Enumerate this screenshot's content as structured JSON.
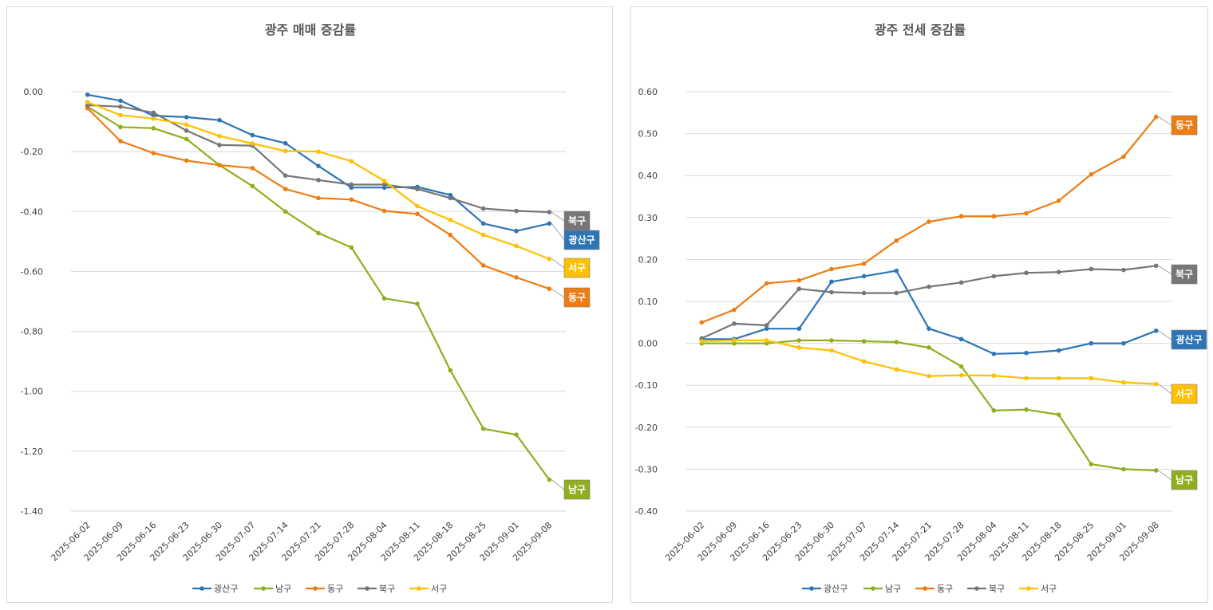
{
  "chart_data": [
    {
      "type": "line",
      "title": "광주 매매 증감률",
      "x": [
        "2025-06-02",
        "2025-06-09",
        "2025-06-16",
        "2025-06-23",
        "2025-06-30",
        "2025-07-07",
        "2025-07-14",
        "2025-07-21",
        "2025-07-28",
        "2025-08-04",
        "2025-08-11",
        "2025-08-18",
        "2025-08-25",
        "2025-09-01",
        "2025-09-08"
      ],
      "ylim": [
        -1.4,
        0.0
      ],
      "yticks": [
        "0.00",
        "-0.20",
        "-0.40",
        "-0.60",
        "-0.80",
        "-1.00",
        "-1.20",
        "-1.40"
      ],
      "ytick_values": [
        0.0,
        -0.2,
        -0.4,
        -0.6,
        -0.8,
        -1.0,
        -1.2,
        -1.4
      ],
      "grid": true,
      "legend": "bottom",
      "series": [
        {
          "name": "광산구",
          "color": "#2e75b6",
          "values": [
            -0.01,
            -0.03,
            -0.08,
            -0.085,
            -0.095,
            -0.145,
            -0.172,
            -0.248,
            -0.32,
            -0.32,
            -0.318,
            -0.345,
            -0.44,
            -0.465,
            -0.44
          ]
        },
        {
          "name": "남구",
          "color": "#8faf1f",
          "values": [
            -0.05,
            -0.118,
            -0.122,
            -0.158,
            -0.245,
            -0.315,
            -0.4,
            -0.472,
            -0.52,
            -0.69,
            -0.708,
            -0.93,
            -1.125,
            -1.145,
            -1.295
          ]
        },
        {
          "name": "동구",
          "color": "#ed7d12",
          "values": [
            -0.055,
            -0.165,
            -0.205,
            -0.23,
            -0.245,
            -0.255,
            -0.325,
            -0.355,
            -0.36,
            -0.398,
            -0.408,
            -0.478,
            -0.58,
            -0.62,
            -0.658
          ]
        },
        {
          "name": "북구",
          "color": "#767676",
          "values": [
            -0.045,
            -0.05,
            -0.07,
            -0.13,
            -0.178,
            -0.18,
            -0.28,
            -0.295,
            -0.31,
            -0.31,
            -0.325,
            -0.355,
            -0.39,
            -0.398,
            -0.402
          ]
        },
        {
          "name": "서구",
          "color": "#ffc000",
          "values": [
            -0.035,
            -0.078,
            -0.09,
            -0.11,
            -0.148,
            -0.173,
            -0.198,
            -0.2,
            -0.232,
            -0.298,
            -0.382,
            -0.428,
            -0.478,
            -0.515,
            -0.558
          ]
        }
      ],
      "end_labels": [
        {
          "series": "북구",
          "text": "북구",
          "color": "#767676"
        },
        {
          "series": "광산구",
          "text": "광산구",
          "color": "#2e75b6"
        },
        {
          "series": "서구",
          "text": "서구",
          "color": "#ffc000"
        },
        {
          "series": "동구",
          "text": "동구",
          "color": "#ed7d12"
        },
        {
          "series": "남구",
          "text": "남구",
          "color": "#8faf1f"
        }
      ]
    },
    {
      "type": "line",
      "title": "광주 전세 증감률",
      "x": [
        "2025-06-02",
        "2025-06-09",
        "2025-06-16",
        "2025-06-23",
        "2025-06-30",
        "2025-07-07",
        "2025-07-14",
        "2025-07-21",
        "2025-07-28",
        "2025-08-04",
        "2025-08-11",
        "2025-08-18",
        "2025-08-25",
        "2025-09-01",
        "2025-09-08"
      ],
      "ylim": [
        -0.4,
        0.6
      ],
      "yticks": [
        "0.60",
        "0.50",
        "0.40",
        "0.30",
        "0.20",
        "0.10",
        "0.00",
        "-0.10",
        "-0.20",
        "-0.30",
        "-0.40"
      ],
      "ytick_values": [
        0.6,
        0.5,
        0.4,
        0.3,
        0.2,
        0.1,
        0.0,
        -0.1,
        -0.2,
        -0.3,
        -0.4
      ],
      "grid": true,
      "legend": "bottom",
      "series": [
        {
          "name": "광산구",
          "color": "#2e75b6",
          "values": [
            0.01,
            0.01,
            0.035,
            0.035,
            0.147,
            0.16,
            0.173,
            0.035,
            0.01,
            -0.025,
            -0.023,
            -0.017,
            0.0,
            0.0,
            0.03
          ]
        },
        {
          "name": "남구",
          "color": "#8faf1f",
          "values": [
            0.0,
            0.0,
            0.0,
            0.007,
            0.007,
            0.005,
            0.003,
            -0.01,
            -0.055,
            -0.16,
            -0.158,
            -0.17,
            -0.288,
            -0.3,
            -0.303
          ]
        },
        {
          "name": "동구",
          "color": "#ed7d12",
          "values": [
            0.05,
            0.08,
            0.143,
            0.15,
            0.177,
            0.19,
            0.245,
            0.29,
            0.303,
            0.303,
            0.31,
            0.34,
            0.403,
            0.445,
            0.54
          ]
        },
        {
          "name": "북구",
          "color": "#767676",
          "values": [
            0.012,
            0.047,
            0.043,
            0.13,
            0.122,
            0.12,
            0.12,
            0.135,
            0.145,
            0.16,
            0.168,
            0.17,
            0.177,
            0.175,
            0.185
          ]
        },
        {
          "name": "서구",
          "color": "#ffc000",
          "values": [
            0.005,
            0.007,
            0.007,
            -0.01,
            -0.017,
            -0.043,
            -0.062,
            -0.078,
            -0.076,
            -0.077,
            -0.083,
            -0.083,
            -0.083,
            -0.093,
            -0.097
          ]
        }
      ],
      "end_labels": [
        {
          "series": "동구",
          "text": "동구",
          "color": "#ed7d12"
        },
        {
          "series": "북구",
          "text": "북구",
          "color": "#767676"
        },
        {
          "series": "광산구",
          "text": "광산구",
          "color": "#2e75b6"
        },
        {
          "series": "서구",
          "text": "서구",
          "color": "#ffc000"
        },
        {
          "series": "남구",
          "text": "남구",
          "color": "#8faf1f"
        }
      ]
    }
  ]
}
